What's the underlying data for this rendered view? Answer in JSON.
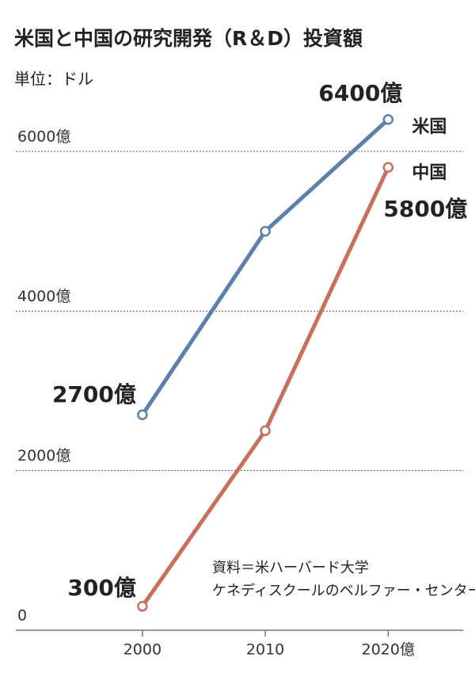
{
  "chart_data": {
    "type": "line",
    "title": "米国と中国の研究開発（R＆D）投資額",
    "subtitle": "単位：ドル",
    "x": [
      2000,
      2010,
      2020
    ],
    "xlim": [
      1989.7,
      2026.1
    ],
    "xticks": [
      2000,
      2010,
      {
        "value": 2020,
        "label": "2020億"
      }
    ],
    "ylim": [
      0,
      6500
    ],
    "yticks": [
      0,
      {
        "value": 2000,
        "label": "2000億"
      },
      {
        "value": 4000,
        "label": "4000億"
      },
      {
        "value": 6000,
        "label": "6000億"
      }
    ],
    "grid": true,
    "series": [
      {
        "name": "米国",
        "color": "#5b80ab",
        "values": [
          2700,
          5000,
          6400
        ],
        "value_labels": [
          "2700億",
          null,
          "6400億"
        ]
      },
      {
        "name": "中国",
        "color": "#c8705c",
        "values": [
          300,
          2500,
          5800
        ],
        "value_labels": [
          "300億",
          null,
          "5800億"
        ]
      }
    ],
    "annotations": [
      "資料＝米ハーバード大学",
      "ケネディスクールのベルファー・センター"
    ]
  }
}
